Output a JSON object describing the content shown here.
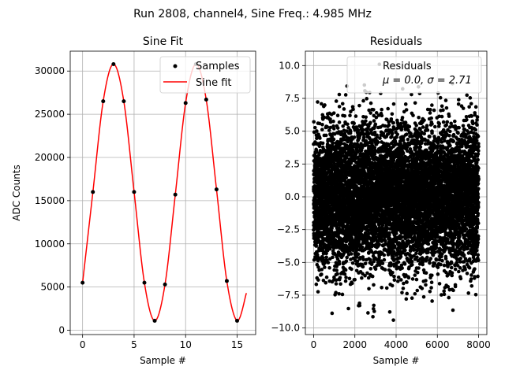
{
  "figure": {
    "suptitle": "Run 2808, channel4, Sine Freq.: 4.985 MHz"
  },
  "chart_data": [
    {
      "type": "line",
      "title": "Sine Fit",
      "xlabel": "Sample #",
      "ylabel": "ADC Counts",
      "xlim": [
        -1.2,
        16.8
      ],
      "ylim": [
        -500,
        32300
      ],
      "xticks": [
        0,
        5,
        10,
        15
      ],
      "yticks": [
        0,
        5000,
        10000,
        15000,
        20000,
        25000,
        30000
      ],
      "grid": true,
      "legend_position": "top-right",
      "series": [
        {
          "name": "Samples",
          "style": "points",
          "color": "#000000",
          "x": [
            0,
            1,
            2,
            3,
            4,
            5,
            6,
            7,
            8,
            9,
            10,
            11,
            12,
            13,
            14,
            15
          ],
          "y": [
            5500,
            16000,
            26500,
            30800,
            26500,
            16000,
            5500,
            1100,
            5300,
            15700,
            26300,
            30800,
            26700,
            16300,
            5700,
            1100
          ]
        },
        {
          "name": "Sine fit",
          "style": "line",
          "color": "#ff0000",
          "x": [
            0,
            1,
            2,
            3,
            4,
            5,
            6,
            7,
            8,
            9,
            10,
            11,
            12,
            13,
            14,
            15,
            15.9
          ],
          "y": [
            5500,
            16000,
            26500,
            30800,
            26500,
            16000,
            5500,
            1100,
            5300,
            15700,
            26300,
            30800,
            26700,
            16300,
            5700,
            1100,
            4300
          ]
        }
      ]
    },
    {
      "type": "scatter",
      "title": "Residuals",
      "xlabel": "Sample #",
      "ylabel": "",
      "xlim": [
        -400,
        8400
      ],
      "ylim": [
        -10.5,
        11.1
      ],
      "xticks": [
        0,
        2000,
        4000,
        6000,
        8000
      ],
      "yticks": [
        -10.0,
        -7.5,
        -5.0,
        -2.5,
        0.0,
        2.5,
        5.0,
        7.5,
        10.0
      ],
      "grid": true,
      "legend_position": "top-right",
      "legend_lines": [
        "Residuals",
        "μ = 0.0, σ = 2.71"
      ],
      "n_points": 8000,
      "mean": 0.0,
      "std": 2.71,
      "range": [
        -9.4,
        10.1
      ],
      "series": [
        {
          "name": "Residuals",
          "style": "points",
          "color": "#000000"
        }
      ]
    }
  ]
}
